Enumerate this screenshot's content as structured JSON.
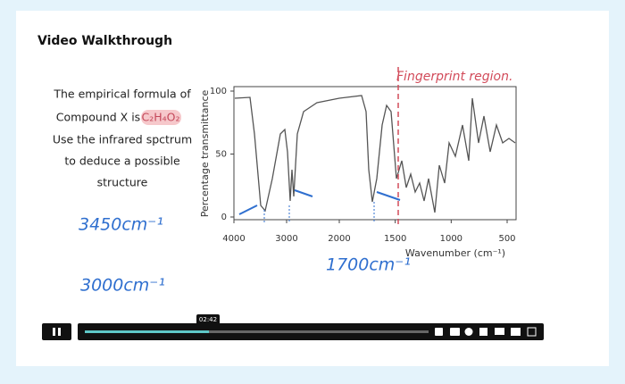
{
  "card": {
    "title": "Video Walkthrough"
  },
  "video": {
    "prompt": [
      "The empirical formula of",
      "Compound X is",
      "Use the infrared spctrum",
      "to deduce a possible",
      "structure"
    ],
    "formula": "C₂H₄O₂",
    "annotations": {
      "peak1": "3450cm⁻¹",
      "peak2": "3000cm⁻¹",
      "peak3": "1700cm⁻¹",
      "region": "Fingerprint region."
    },
    "spectrum": {
      "ylabel": "Percentage transmittance",
      "xlabel": "Wavenumber (cm⁻¹)",
      "yticks": [
        0,
        50,
        100
      ],
      "ylim": [
        0,
        100
      ],
      "xticks": [
        4000,
        3000,
        2000,
        1500,
        1000,
        500
      ]
    },
    "player": {
      "time": "02:42"
    }
  }
}
